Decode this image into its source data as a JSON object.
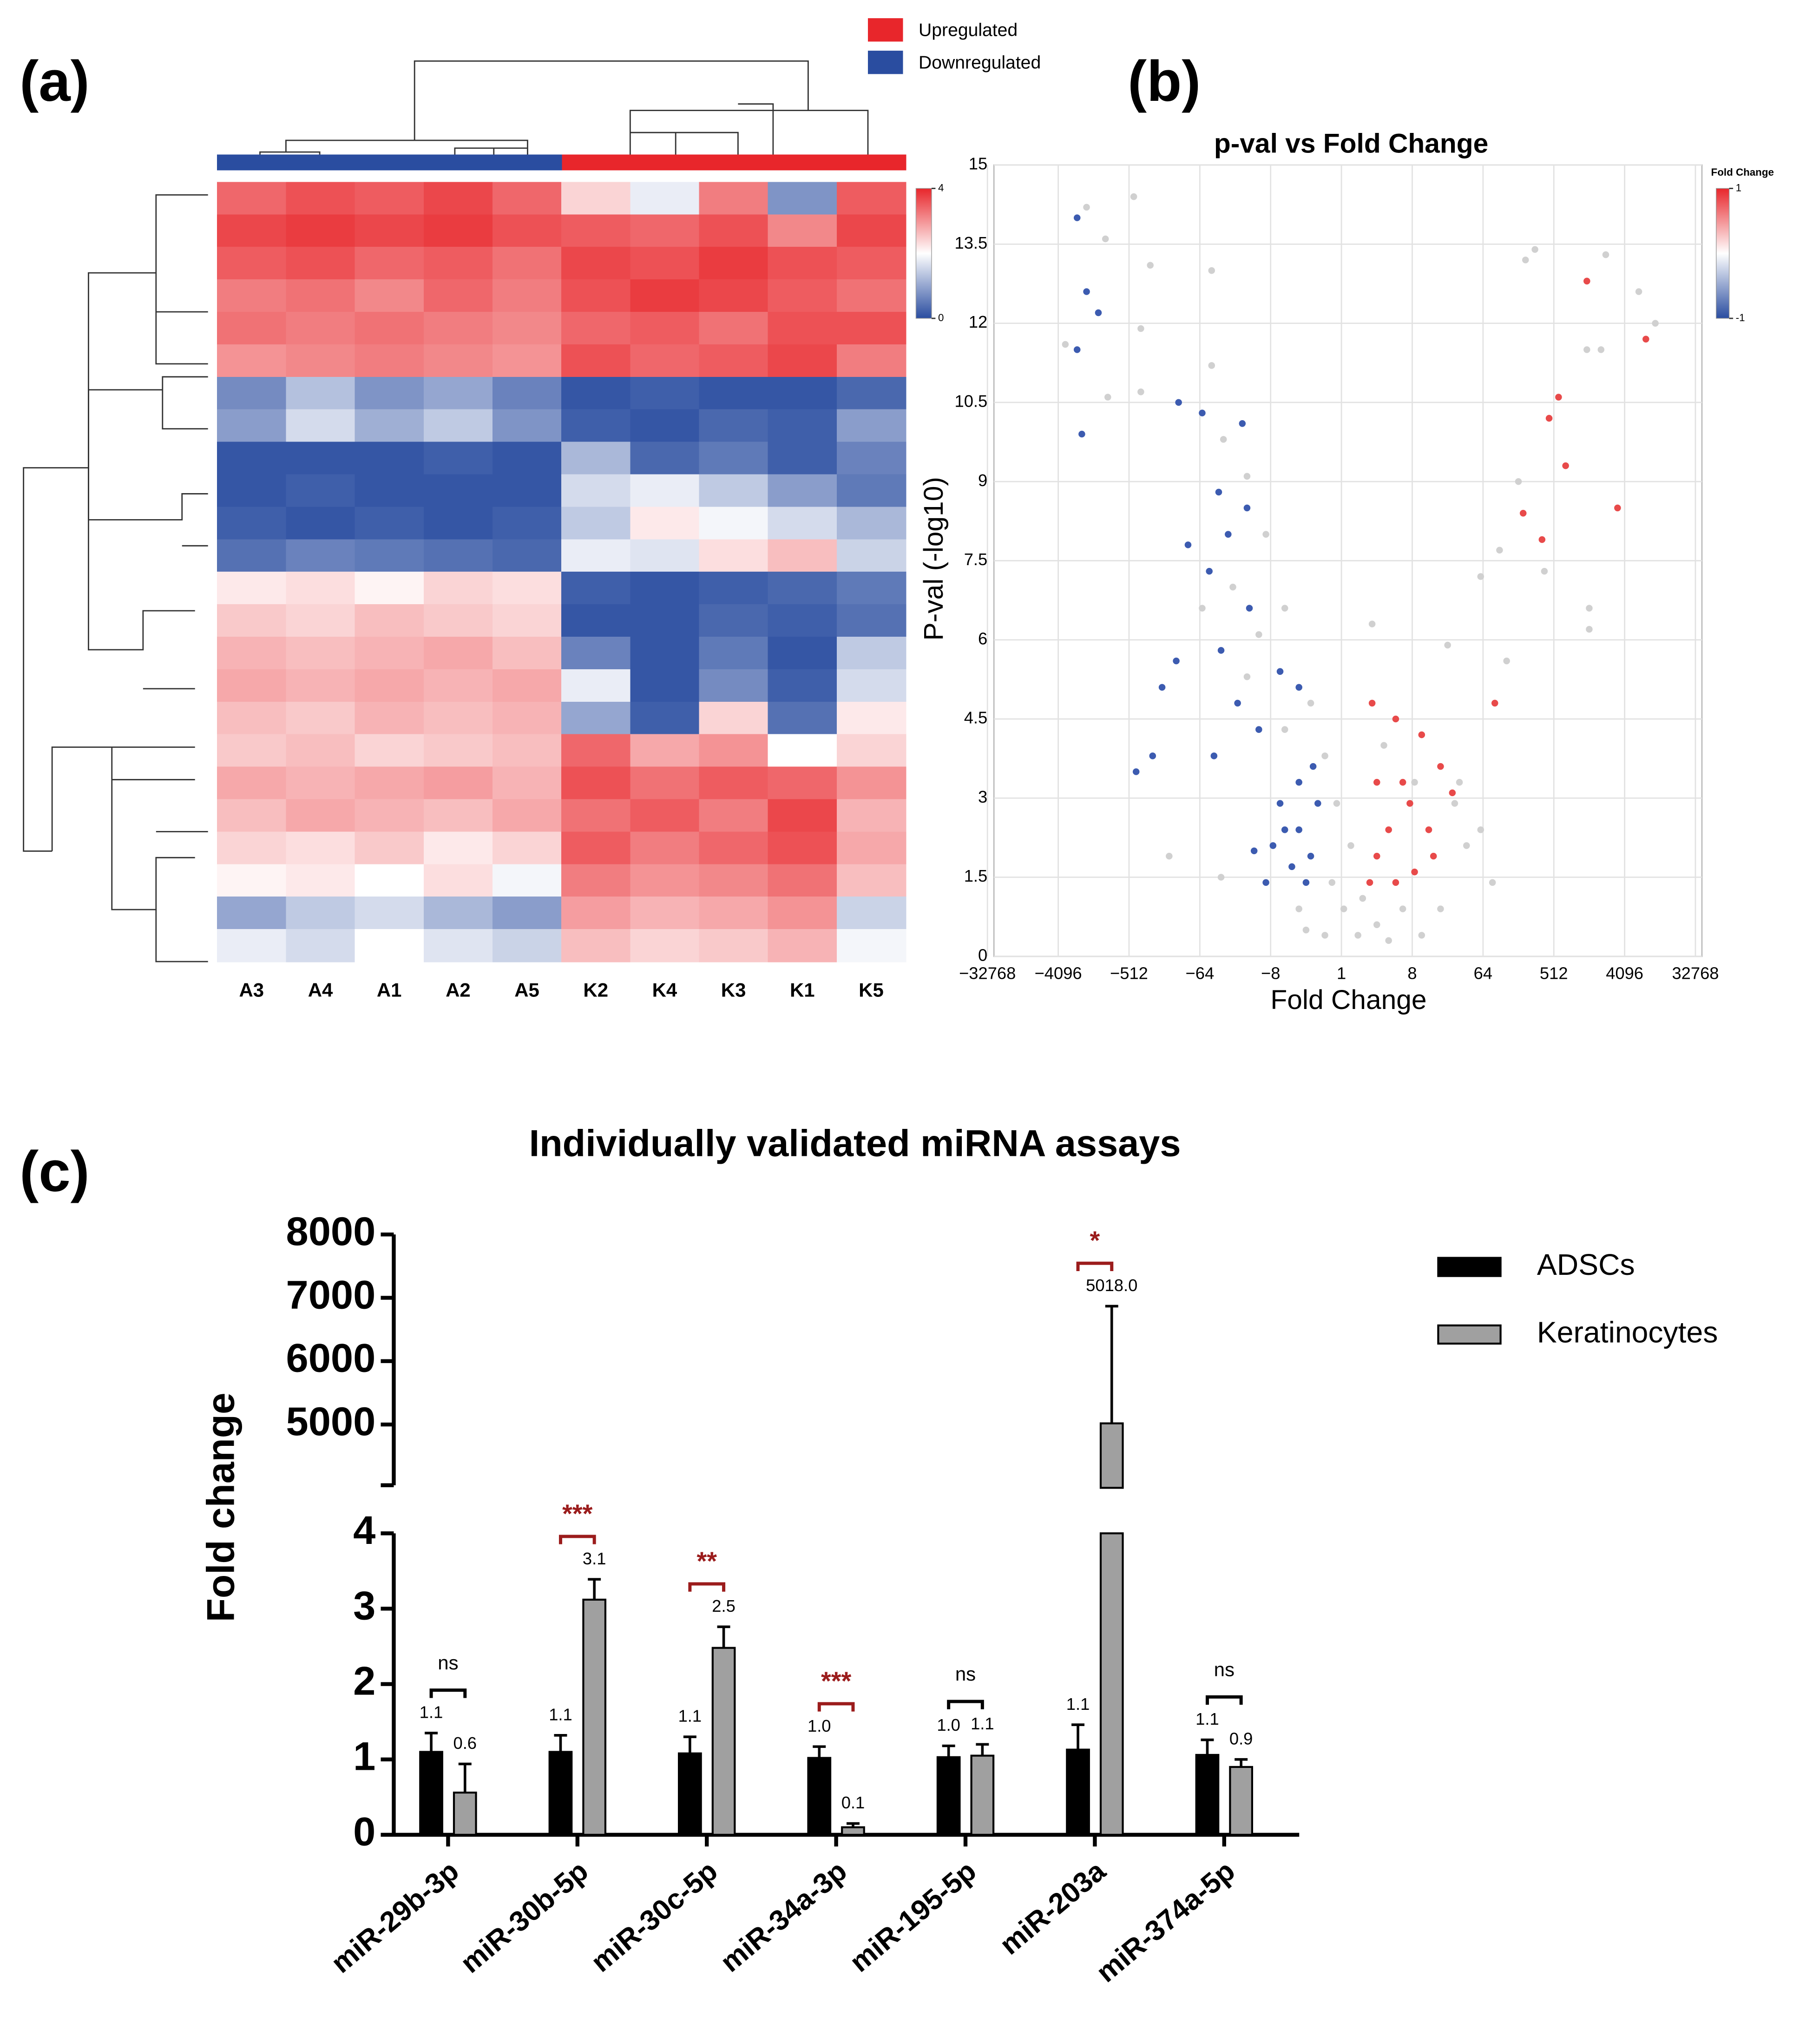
{
  "chart_data": [
    {
      "type": "heatmap",
      "panel": "(a)",
      "columns": [
        "A3",
        "A4",
        "A1",
        "A2",
        "A5",
        "K2",
        "K4",
        "K3",
        "K1",
        "K5"
      ],
      "groups": [
        {
          "name": "Upregulated",
          "color": "#e8262b",
          "columns": [
            "K2",
            "K4",
            "K3",
            "K1",
            "K5"
          ]
        },
        {
          "name": "Downregulated",
          "color": "#2a4da0",
          "columns": [
            "A3",
            "A4",
            "A1",
            "A2",
            "A5"
          ]
        }
      ],
      "colors": [
        "#2a4da0",
        "#ffffff",
        "#e8262b"
      ],
      "zlim": [
        0,
        4
      ],
      "zticks": [
        0,
        4
      ],
      "values": [
        [
          3.4,
          3.6,
          3.5,
          3.7,
          3.4,
          2.4,
          1.8,
          3.2,
          0.8,
          3.5
        ],
        [
          3.7,
          3.8,
          3.7,
          3.8,
          3.6,
          3.5,
          3.4,
          3.6,
          3.1,
          3.7
        ],
        [
          3.5,
          3.6,
          3.4,
          3.5,
          3.3,
          3.7,
          3.6,
          3.8,
          3.6,
          3.5
        ],
        [
          3.2,
          3.3,
          3.1,
          3.4,
          3.2,
          3.6,
          3.8,
          3.7,
          3.5,
          3.3
        ],
        [
          3.3,
          3.2,
          3.3,
          3.2,
          3.1,
          3.4,
          3.5,
          3.3,
          3.6,
          3.6
        ],
        [
          3.0,
          3.1,
          3.2,
          3.1,
          3.0,
          3.6,
          3.4,
          3.5,
          3.7,
          3.2
        ],
        [
          0.7,
          1.3,
          0.8,
          1.0,
          0.6,
          0.1,
          0.2,
          0.1,
          0.1,
          0.3
        ],
        [
          0.9,
          1.6,
          1.1,
          1.4,
          0.8,
          0.2,
          0.1,
          0.3,
          0.2,
          0.9
        ],
        [
          0.1,
          0.1,
          0.1,
          0.2,
          0.1,
          1.2,
          0.3,
          0.5,
          0.2,
          0.6
        ],
        [
          0.1,
          0.2,
          0.1,
          0.1,
          0.1,
          1.6,
          1.8,
          1.4,
          0.9,
          0.5
        ],
        [
          0.2,
          0.1,
          0.2,
          0.1,
          0.2,
          1.4,
          2.2,
          1.9,
          1.6,
          1.2
        ],
        [
          0.4,
          0.6,
          0.5,
          0.4,
          0.3,
          1.8,
          1.7,
          2.3,
          2.6,
          1.5
        ],
        [
          2.2,
          2.3,
          2.1,
          2.4,
          2.3,
          0.2,
          0.1,
          0.2,
          0.3,
          0.5
        ],
        [
          2.5,
          2.4,
          2.6,
          2.5,
          2.4,
          0.1,
          0.1,
          0.3,
          0.2,
          0.4
        ],
        [
          2.7,
          2.6,
          2.7,
          2.8,
          2.6,
          0.6,
          0.1,
          0.5,
          0.1,
          1.4
        ],
        [
          2.8,
          2.7,
          2.8,
          2.7,
          2.8,
          1.8,
          0.1,
          0.7,
          0.2,
          1.6
        ],
        [
          2.6,
          2.5,
          2.7,
          2.6,
          2.7,
          1.0,
          0.2,
          2.4,
          0.4,
          2.2
        ],
        [
          2.5,
          2.6,
          2.4,
          2.5,
          2.6,
          3.4,
          2.8,
          3.0,
          2.0,
          2.4
        ],
        [
          2.8,
          2.7,
          2.8,
          2.9,
          2.7,
          3.6,
          3.3,
          3.5,
          3.4,
          3.0
        ],
        [
          2.6,
          2.8,
          2.7,
          2.6,
          2.8,
          3.3,
          3.5,
          3.2,
          3.7,
          2.7
        ],
        [
          2.4,
          2.3,
          2.5,
          2.2,
          2.4,
          3.5,
          3.2,
          3.4,
          3.6,
          2.8
        ],
        [
          2.1,
          2.2,
          2.0,
          2.3,
          1.9,
          3.2,
          3.0,
          3.1,
          3.3,
          2.6
        ],
        [
          1.0,
          1.4,
          1.6,
          1.2,
          0.9,
          2.9,
          2.7,
          2.8,
          3.0,
          1.5
        ],
        [
          1.8,
          1.6,
          2.0,
          1.7,
          1.5,
          2.6,
          2.4,
          2.5,
          2.7,
          1.9
        ]
      ]
    },
    {
      "type": "scatter",
      "panel": "(b)",
      "title": "p-val vs Fold Change",
      "x_label": "Fold Change",
      "y_label": "P-val (-log10)",
      "xlim": [
        -15,
        15
      ],
      "ylim": [
        0,
        15
      ],
      "grid": true,
      "xticks": [
        {
          "value": -15,
          "label": "−32768"
        },
        {
          "value": -12,
          "label": "−4096"
        },
        {
          "value": -9,
          "label": "−512"
        },
        {
          "value": -6,
          "label": "−64"
        },
        {
          "value": -3,
          "label": "−8"
        },
        {
          "value": 0,
          "label": "1"
        },
        {
          "value": 3,
          "label": "8"
        },
        {
          "value": 6,
          "label": "64"
        },
        {
          "value": 9,
          "label": "512"
        },
        {
          "value": 12,
          "label": "4096"
        },
        {
          "value": 15,
          "label": "32768"
        }
      ],
      "yticks": [
        0,
        1.5,
        3,
        4.5,
        6,
        7.5,
        9,
        10.5,
        12,
        13.5,
        15
      ],
      "colorbar": {
        "title": "Fold Change",
        "colors": [
          "#2a4da0",
          "#ffffff",
          "#e8262b"
        ],
        "ticks": [
          1,
          -1
        ]
      },
      "series": [
        {
          "color": "#d0d0d0",
          "x": [
            -10.8,
            -10.0,
            -8.8,
            -8.1,
            -11.7,
            -8.5,
            -9.9,
            -8.5,
            -5.5,
            -5.5,
            -5.0,
            -4.0,
            -3.2,
            -4.6,
            -2.4,
            -3.5,
            -5.9,
            -4.0,
            -1.3,
            -2.4,
            -0.7,
            -0.2,
            0.4,
            -0.4,
            0.1,
            0.7,
            -0.7,
            1.5,
            -1.5,
            0.9,
            1.8,
            3.1,
            4.8,
            5.3,
            4.2,
            3.4,
            2.6,
            5.9,
            1.3,
            4.5,
            7.0,
            5.9,
            6.7,
            7.5,
            8.2,
            7.8,
            11.2,
            12.6,
            13.3,
            10.4,
            11.0,
            10.5,
            10.5,
            8.6,
            -5.1,
            -7.3,
            6.4,
            5.0,
            -1.8,
            2.0
          ],
          "y": [
            14.2,
            13.6,
            14.4,
            13.1,
            11.6,
            11.9,
            10.6,
            10.7,
            13.0,
            11.2,
            9.8,
            9.1,
            8.0,
            7.0,
            6.6,
            6.1,
            6.6,
            5.3,
            4.8,
            4.3,
            3.8,
            2.9,
            2.1,
            1.4,
            0.9,
            0.4,
            0.4,
            0.6,
            0.5,
            1.1,
            4.0,
            3.3,
            2.9,
            2.1,
            0.9,
            0.4,
            0.9,
            2.4,
            6.3,
            5.9,
            5.6,
            7.2,
            7.7,
            9.0,
            13.4,
            13.2,
            13.3,
            12.6,
            12.0,
            11.5,
            11.5,
            6.6,
            6.2,
            7.3,
            1.5,
            1.9,
            1.4,
            3.3,
            0.9,
            0.3
          ]
        },
        {
          "color": "#3c5bb0",
          "x": [
            -11.2,
            -11.2,
            -10.8,
            -10.3,
            -11.0,
            -6.9,
            -5.9,
            -4.2,
            -5.2,
            -4.8,
            -4.0,
            -6.5,
            -5.6,
            -3.9,
            -5.1,
            -7.0,
            -7.6,
            -8.7,
            -8.0,
            -5.4,
            -4.4,
            -3.5,
            -2.6,
            -1.8,
            -1.8,
            -2.4,
            -1.3,
            -1.0,
            -2.1,
            -2.9,
            -1.5,
            -3.2,
            -1.2,
            -1.8,
            -2.6,
            -3.7
          ],
          "y": [
            14.0,
            11.5,
            12.6,
            12.2,
            9.9,
            10.5,
            10.3,
            10.1,
            8.8,
            8.0,
            8.5,
            7.8,
            7.3,
            6.6,
            5.8,
            5.6,
            5.1,
            3.5,
            3.8,
            3.8,
            4.8,
            4.3,
            5.4,
            5.1,
            3.3,
            2.4,
            1.9,
            2.9,
            1.7,
            2.1,
            1.4,
            1.4,
            3.6,
            2.4,
            2.9,
            2.0
          ]
        },
        {
          "color": "#e84a4a",
          "x": [
            1.3,
            2.3,
            3.4,
            4.2,
            4.7,
            1.5,
            2.9,
            3.7,
            1.5,
            2.3,
            3.1,
            2.0,
            3.9,
            1.2,
            2.6,
            6.5,
            9.2,
            8.8,
            9.5,
            10.4,
            11.7,
            12.9,
            7.7,
            8.5
          ],
          "y": [
            4.8,
            4.5,
            4.2,
            3.6,
            3.1,
            3.3,
            2.9,
            2.4,
            1.9,
            1.4,
            1.6,
            2.4,
            1.9,
            1.4,
            3.3,
            4.8,
            10.6,
            10.2,
            9.3,
            12.8,
            8.5,
            11.7,
            8.4,
            7.9
          ]
        }
      ]
    },
    {
      "type": "bar",
      "panel": "(c)",
      "title": "Individually validated miRNA assays",
      "y_label": "Fold change",
      "categories": [
        "miR-29b-3p",
        "miR-30b-5p",
        "miR-30c-5p",
        "miR-34a-3p",
        "miR-195-5p",
        "miR-203a",
        "miR-374a-5p"
      ],
      "ylim": [
        0,
        4
      ],
      "yticks": [
        0,
        1,
        2,
        3,
        4
      ],
      "upper_ylim": [
        4000,
        8000
      ],
      "upper_yticks": [
        5000,
        6000,
        7000,
        8000
      ],
      "series": [
        {
          "name": "ADSCs",
          "color": "#000000",
          "values": [
            1.1,
            1.1,
            1.08,
            1.02,
            1.03,
            1.13,
            1.06
          ],
          "errors": [
            0.25,
            0.22,
            0.22,
            0.15,
            0.15,
            0.33,
            0.2
          ],
          "value_labels": [
            "1.1",
            "1.1",
            "1.1",
            "1.0",
            "1.0",
            "1.1",
            "1.1"
          ]
        },
        {
          "name": "Keratinocytes",
          "color": "#a0a0a0",
          "values": [
            0.56,
            3.12,
            2.48,
            0.1,
            1.05,
            5018.0,
            0.9
          ],
          "errors": [
            0.38,
            0.27,
            0.28,
            0.05,
            0.15,
            1850,
            0.1
          ],
          "value_labels": [
            "0.6",
            "3.1",
            "2.5",
            "0.1",
            "1.1",
            "5018.0",
            "0.9"
          ]
        }
      ],
      "significance": [
        "ns",
        "***",
        "**",
        "***",
        "ns",
        "*",
        "ns"
      ],
      "significance_colors": {
        "ns": "#000000",
        "stars": "#9b1c1c"
      }
    }
  ]
}
